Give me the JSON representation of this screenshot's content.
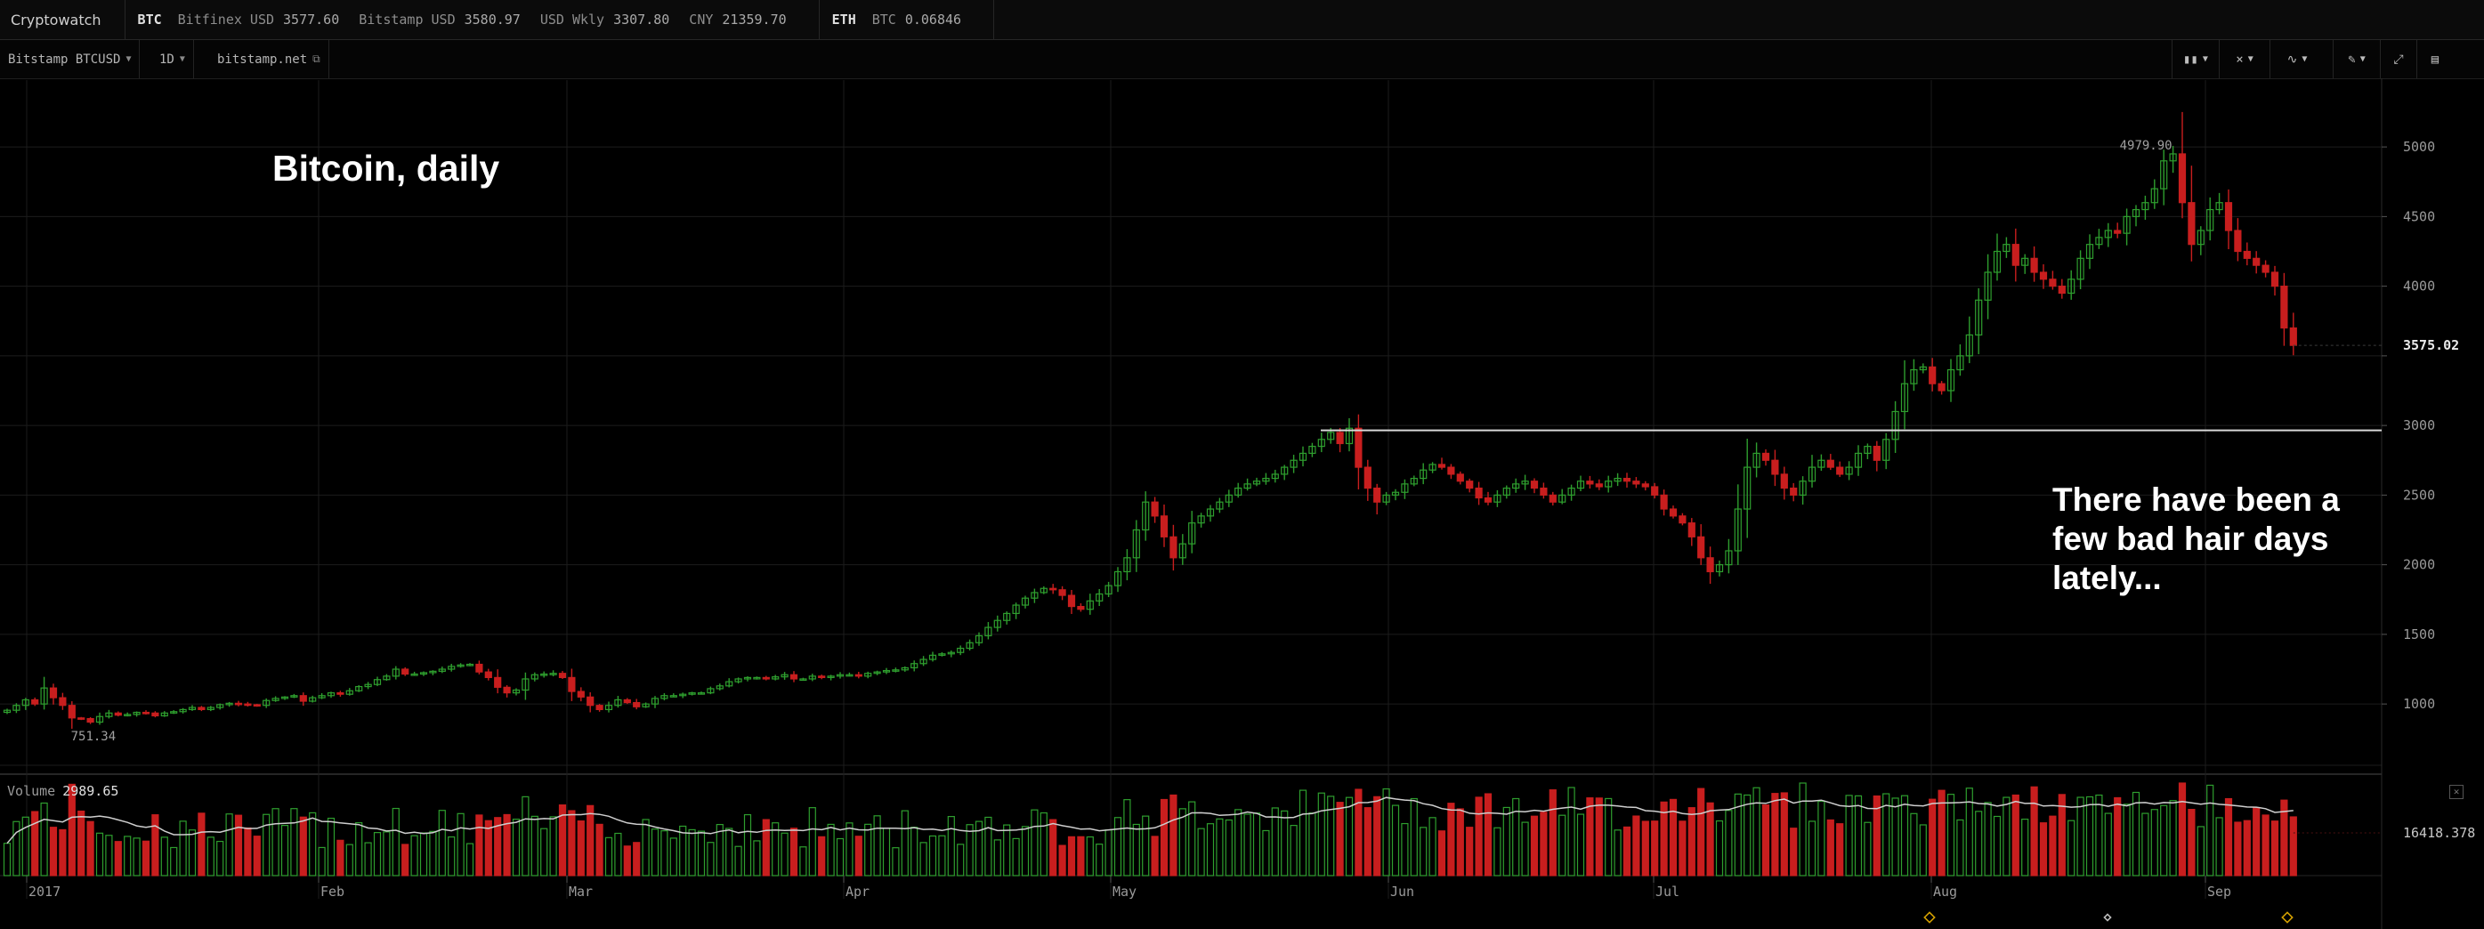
{
  "app_title": "Cryptowatch",
  "tickers": [
    {
      "symbol": "BTC",
      "quotes": [
        {
          "label": "Bitfinex USD",
          "value": "3577.60"
        },
        {
          "label": "Bitstamp USD",
          "value": "3580.97"
        },
        {
          "label": "USD Wkly",
          "value": "3307.80"
        },
        {
          "label": "CNY",
          "value": "21359.70"
        }
      ]
    },
    {
      "symbol": "ETH",
      "quotes": [
        {
          "label": "BTC",
          "value": "0.06846"
        }
      ]
    }
  ],
  "toolbar": {
    "market": "Bitstamp BTCUSD",
    "interval": "1D",
    "exchange_link": "bitstamp.net"
  },
  "annotations": {
    "title": "Bitcoin, daily",
    "note_lines": [
      "There have been a",
      "few bad hair days",
      "lately..."
    ]
  },
  "volume": {
    "label": "Volume",
    "value": "2989.65",
    "axis_label": "16418.378"
  },
  "chart_data": {
    "type": "candlestick",
    "price_axis_ticks": [
      1000,
      1500,
      2000,
      2500,
      3000,
      3500,
      4000,
      4500,
      5000
    ],
    "price_axis_labels": [
      "1000",
      "1500",
      "2000",
      "2500",
      "3000",
      "",
      "4000",
      "4500",
      "5000"
    ],
    "ylim": [
      560,
      5480
    ],
    "last_price": 3575.02,
    "last_price_label": "3575.02",
    "high_label": "4979.90",
    "low_label": "751.34",
    "resistance_level": 2965,
    "time_axis_labels": [
      "2017",
      "Feb",
      "Mar",
      "Apr",
      "May",
      "Jun",
      "Jul",
      "Aug",
      "Sep"
    ],
    "up_color": "#2e9e2e",
    "down_color": "#c81e1e",
    "closes": [
      955,
      990,
      1030,
      1000,
      1115,
      1045,
      990,
      900,
      895,
      870,
      910,
      935,
      920,
      925,
      940,
      935,
      915,
      935,
      945,
      960,
      975,
      960,
      975,
      995,
      1005,
      1000,
      995,
      990,
      1025,
      1040,
      1050,
      1060,
      1020,
      1045,
      1060,
      1080,
      1070,
      1095,
      1125,
      1140,
      1175,
      1200,
      1250,
      1215,
      1215,
      1225,
      1235,
      1250,
      1270,
      1280,
      1285,
      1230,
      1190,
      1120,
      1080,
      1100,
      1180,
      1210,
      1215,
      1220,
      1190,
      1090,
      1050,
      990,
      960,
      990,
      1030,
      1010,
      980,
      1000,
      1040,
      1060,
      1060,
      1070,
      1080,
      1080,
      1110,
      1130,
      1160,
      1180,
      1190,
      1190,
      1180,
      1195,
      1210,
      1180,
      1180,
      1200,
      1190,
      1200,
      1210,
      1210,
      1200,
      1220,
      1230,
      1240,
      1245,
      1260,
      1290,
      1320,
      1350,
      1360,
      1370,
      1400,
      1440,
      1490,
      1550,
      1600,
      1650,
      1710,
      1760,
      1800,
      1830,
      1820,
      1780,
      1700,
      1680,
      1740,
      1790,
      1850,
      1950,
      2050,
      2250,
      2450,
      2350,
      2200,
      2050,
      2150,
      2300,
      2350,
      2400,
      2450,
      2500,
      2550,
      2580,
      2600,
      2620,
      2650,
      2700,
      2750,
      2800,
      2850,
      2900,
      2950,
      2870,
      2980,
      2700,
      2550,
      2450,
      2500,
      2520,
      2580,
      2620,
      2680,
      2720,
      2700,
      2650,
      2600,
      2550,
      2480,
      2450,
      2500,
      2550,
      2580,
      2600,
      2550,
      2500,
      2450,
      2500,
      2550,
      2600,
      2580,
      2560,
      2600,
      2620,
      2600,
      2580,
      2560,
      2500,
      2400,
      2350,
      2300,
      2200,
      2050,
      1950,
      2000,
      2100,
      2400,
      2700,
      2800,
      2750,
      2650,
      2550,
      2500,
      2600,
      2700,
      2750,
      2700,
      2650,
      2700,
      2800,
      2850,
      2750,
      2900,
      3100,
      3300,
      3400,
      3420,
      3300,
      3250,
      3400,
      3500,
      3650,
      3900,
      4100,
      4250,
      4300,
      4150,
      4200,
      4100,
      4050,
      4000,
      3950,
      4050,
      4200,
      4300,
      4350,
      4400,
      4380,
      4500,
      4550,
      4600,
      4700,
      4900,
      4950,
      4600,
      4300,
      4400,
      4550,
      4600,
      4400,
      4250,
      4200,
      4150,
      4100,
      4000,
      3700,
      3575
    ]
  }
}
